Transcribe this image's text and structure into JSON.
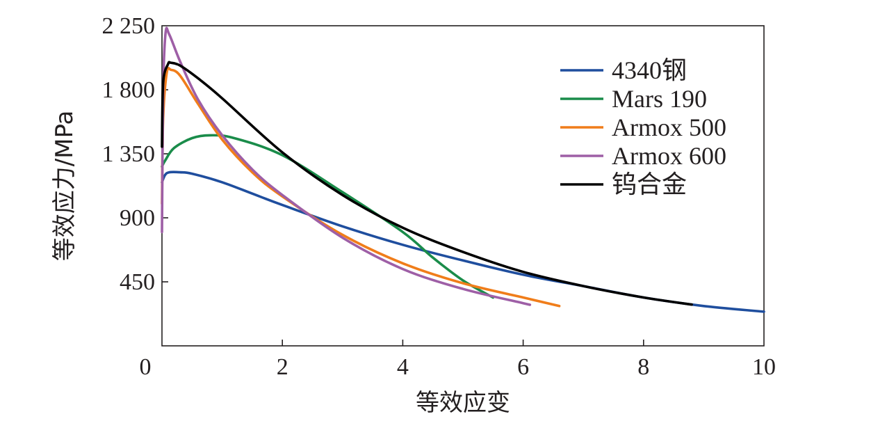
{
  "chart_data": {
    "type": "line",
    "title": "",
    "xlabel": "等效应变",
    "ylabel": "等效应力/MPa",
    "xlim": [
      0,
      10
    ],
    "ylim": [
      0,
      2250
    ],
    "x_ticks": [
      0,
      2,
      4,
      6,
      8,
      10
    ],
    "x_tick_labels": [
      "0",
      "2",
      "4",
      "6",
      "8",
      "10"
    ],
    "y_ticks": [
      450,
      900,
      1350,
      1800,
      2250
    ],
    "y_tick_labels": [
      "450",
      "900",
      "1 350",
      "1 800",
      "2 250"
    ],
    "grid": false,
    "legend_position": "top-right",
    "series": [
      {
        "name": "4340钢",
        "color": "#1f4e9e",
        "points": [
          [
            0,
            1150
          ],
          [
            0.05,
            1200
          ],
          [
            0.12,
            1220
          ],
          [
            0.3,
            1220
          ],
          [
            0.5,
            1210
          ],
          [
            1,
            1150
          ],
          [
            1.5,
            1070
          ],
          [
            2,
            990
          ],
          [
            3,
            840
          ],
          [
            4,
            710
          ],
          [
            5,
            600
          ],
          [
            6,
            500
          ],
          [
            7,
            420
          ],
          [
            8,
            340
          ],
          [
            9,
            280
          ],
          [
            10,
            240
          ]
        ]
      },
      {
        "name": "Mars 190",
        "color": "#1a8c4a",
        "points": [
          [
            0,
            1260
          ],
          [
            0.05,
            1300
          ],
          [
            0.2,
            1390
          ],
          [
            0.5,
            1460
          ],
          [
            0.8,
            1480
          ],
          [
            1.2,
            1460
          ],
          [
            2,
            1340
          ],
          [
            3,
            1080
          ],
          [
            4,
            800
          ],
          [
            4.5,
            620
          ],
          [
            5,
            460
          ],
          [
            5.5,
            340
          ]
        ]
      },
      {
        "name": "Armox 500",
        "color": "#f07d1a",
        "points": [
          [
            0,
            1000
          ],
          [
            0.02,
            1600
          ],
          [
            0.08,
            1920
          ],
          [
            0.15,
            1940
          ],
          [
            0.3,
            1900
          ],
          [
            0.6,
            1700
          ],
          [
            1,
            1450
          ],
          [
            1.5,
            1220
          ],
          [
            2,
            1050
          ],
          [
            3,
            780
          ],
          [
            4,
            580
          ],
          [
            5,
            440
          ],
          [
            6,
            340
          ],
          [
            6.6,
            280
          ]
        ]
      },
      {
        "name": "Armox 600",
        "color": "#9e5fa6",
        "points": [
          [
            0,
            800
          ],
          [
            0.02,
            1800
          ],
          [
            0.06,
            2200
          ],
          [
            0.12,
            2190
          ],
          [
            0.3,
            2000
          ],
          [
            0.6,
            1730
          ],
          [
            1,
            1480
          ],
          [
            1.5,
            1240
          ],
          [
            2,
            1060
          ],
          [
            3,
            760
          ],
          [
            4,
            540
          ],
          [
            5,
            400
          ],
          [
            6,
            300
          ],
          [
            6.1,
            290
          ]
        ]
      },
      {
        "name": "钨合金",
        "color": "#000000",
        "points": [
          [
            0,
            1400
          ],
          [
            0.02,
            1850
          ],
          [
            0.1,
            1980
          ],
          [
            0.15,
            1990
          ],
          [
            0.3,
            1970
          ],
          [
            0.6,
            1880
          ],
          [
            1,
            1740
          ],
          [
            2,
            1360
          ],
          [
            3,
            1060
          ],
          [
            4,
            830
          ],
          [
            5,
            660
          ],
          [
            6,
            520
          ],
          [
            7,
            420
          ],
          [
            8,
            340
          ],
          [
            8.8,
            290
          ]
        ]
      }
    ]
  }
}
